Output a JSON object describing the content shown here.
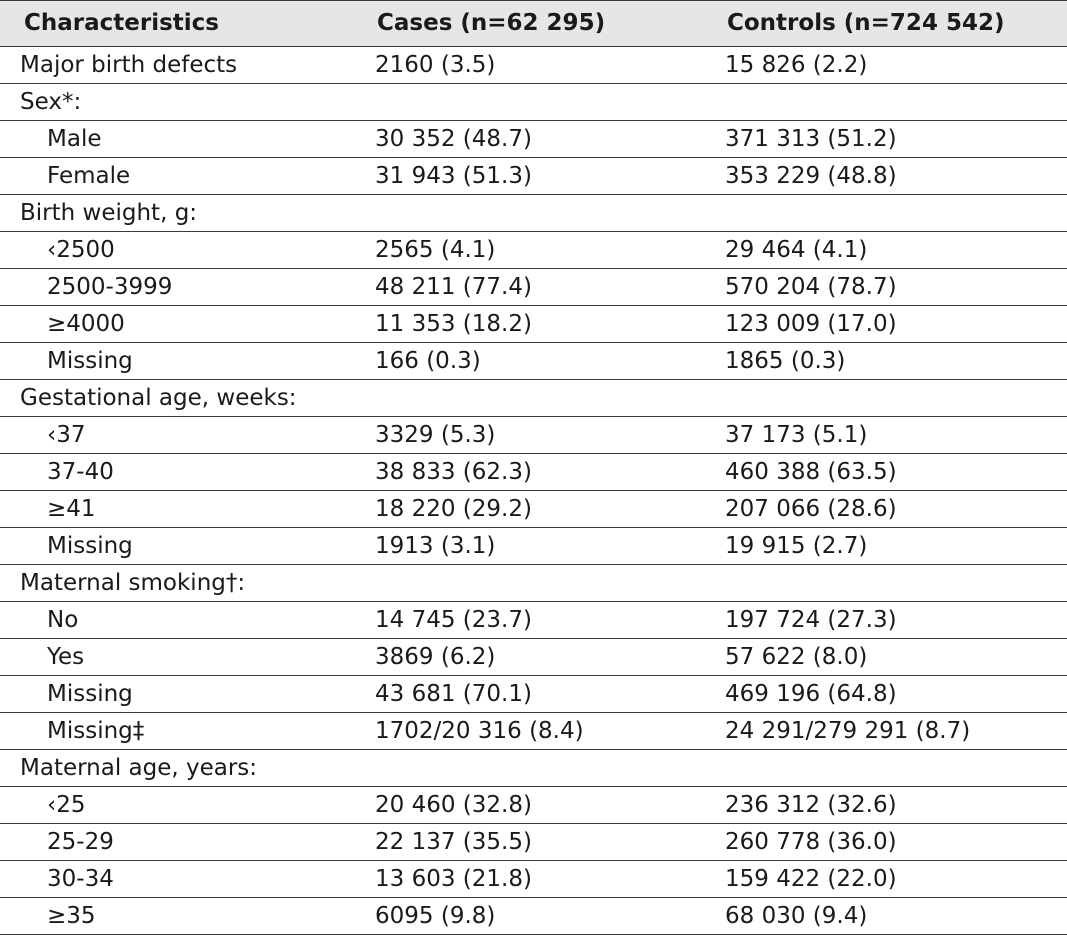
{
  "header": {
    "characteristics": "Characteristics",
    "cases": "Cases (n=62 295)",
    "controls": "Controls (n=724 542)"
  },
  "rows": [
    {
      "label": "Major birth defects",
      "cases": "2160 (3.5)",
      "controls": "15 826 (2.2)",
      "indent": false
    },
    {
      "label": "Sex*:",
      "cases": "",
      "controls": "",
      "indent": false
    },
    {
      "label": "Male",
      "cases": "30 352 (48.7)",
      "controls": "371 313 (51.2)",
      "indent": true
    },
    {
      "label": "Female",
      "cases": "31 943 (51.3)",
      "controls": "353 229 (48.8)",
      "indent": true
    },
    {
      "label": "Birth weight, g:",
      "cases": "",
      "controls": "",
      "indent": false
    },
    {
      "label": "‹2500",
      "cases": "2565 (4.1)",
      "controls": "29 464 (4.1)",
      "indent": true
    },
    {
      "label": "2500-3999",
      "cases": "48 211 (77.4)",
      "controls": "570 204 (78.7)",
      "indent": true
    },
    {
      "label": "≥4000",
      "cases": "11 353 (18.2)",
      "controls": "123 009 (17.0)",
      "indent": true
    },
    {
      "label": "Missing",
      "cases": "166 (0.3)",
      "controls": "1865 (0.3)",
      "indent": true
    },
    {
      "label": "Gestational age, weeks:",
      "cases": "",
      "controls": "",
      "indent": false
    },
    {
      "label": "‹37",
      "cases": "3329 (5.3)",
      "controls": "37 173 (5.1)",
      "indent": true
    },
    {
      "label": "37-40",
      "cases": "38 833 (62.3)",
      "controls": "460 388 (63.5)",
      "indent": true
    },
    {
      "label": "≥41",
      "cases": "18 220 (29.2)",
      "controls": "207 066 (28.6)",
      "indent": true
    },
    {
      "label": "Missing",
      "cases": "1913 (3.1)",
      "controls": "19 915 (2.7)",
      "indent": true
    },
    {
      "label": "Maternal smoking†:",
      "cases": "",
      "controls": "",
      "indent": false
    },
    {
      "label": "No",
      "cases": "14 745 (23.7)",
      "controls": "197 724 (27.3)",
      "indent": true
    },
    {
      "label": "Yes",
      "cases": "3869 (6.2)",
      "controls": "57 622 (8.0)",
      "indent": true
    },
    {
      "label": "Missing",
      "cases": "43 681 (70.1)",
      "controls": "469 196 (64.8)",
      "indent": true
    },
    {
      "label": "Missing‡",
      "cases": "1702/20 316 (8.4)",
      "controls": "24 291/279 291 (8.7)",
      "indent": true
    },
    {
      "label": "Maternal age, years:",
      "cases": "",
      "controls": "",
      "indent": false
    },
    {
      "label": "‹25",
      "cases": "20 460 (32.8)",
      "controls": "236 312 (32.6)",
      "indent": true
    },
    {
      "label": "25-29",
      "cases": "22 137 (35.5)",
      "controls": "260 778 (36.0)",
      "indent": true
    },
    {
      "label": "30-34",
      "cases": "13 603 (21.8)",
      "controls": "159 422 (22.0)",
      "indent": true
    },
    {
      "label": "≥35",
      "cases": "6095 (9.8)",
      "controls": "68 030 (9.4)",
      "indent": true
    }
  ]
}
